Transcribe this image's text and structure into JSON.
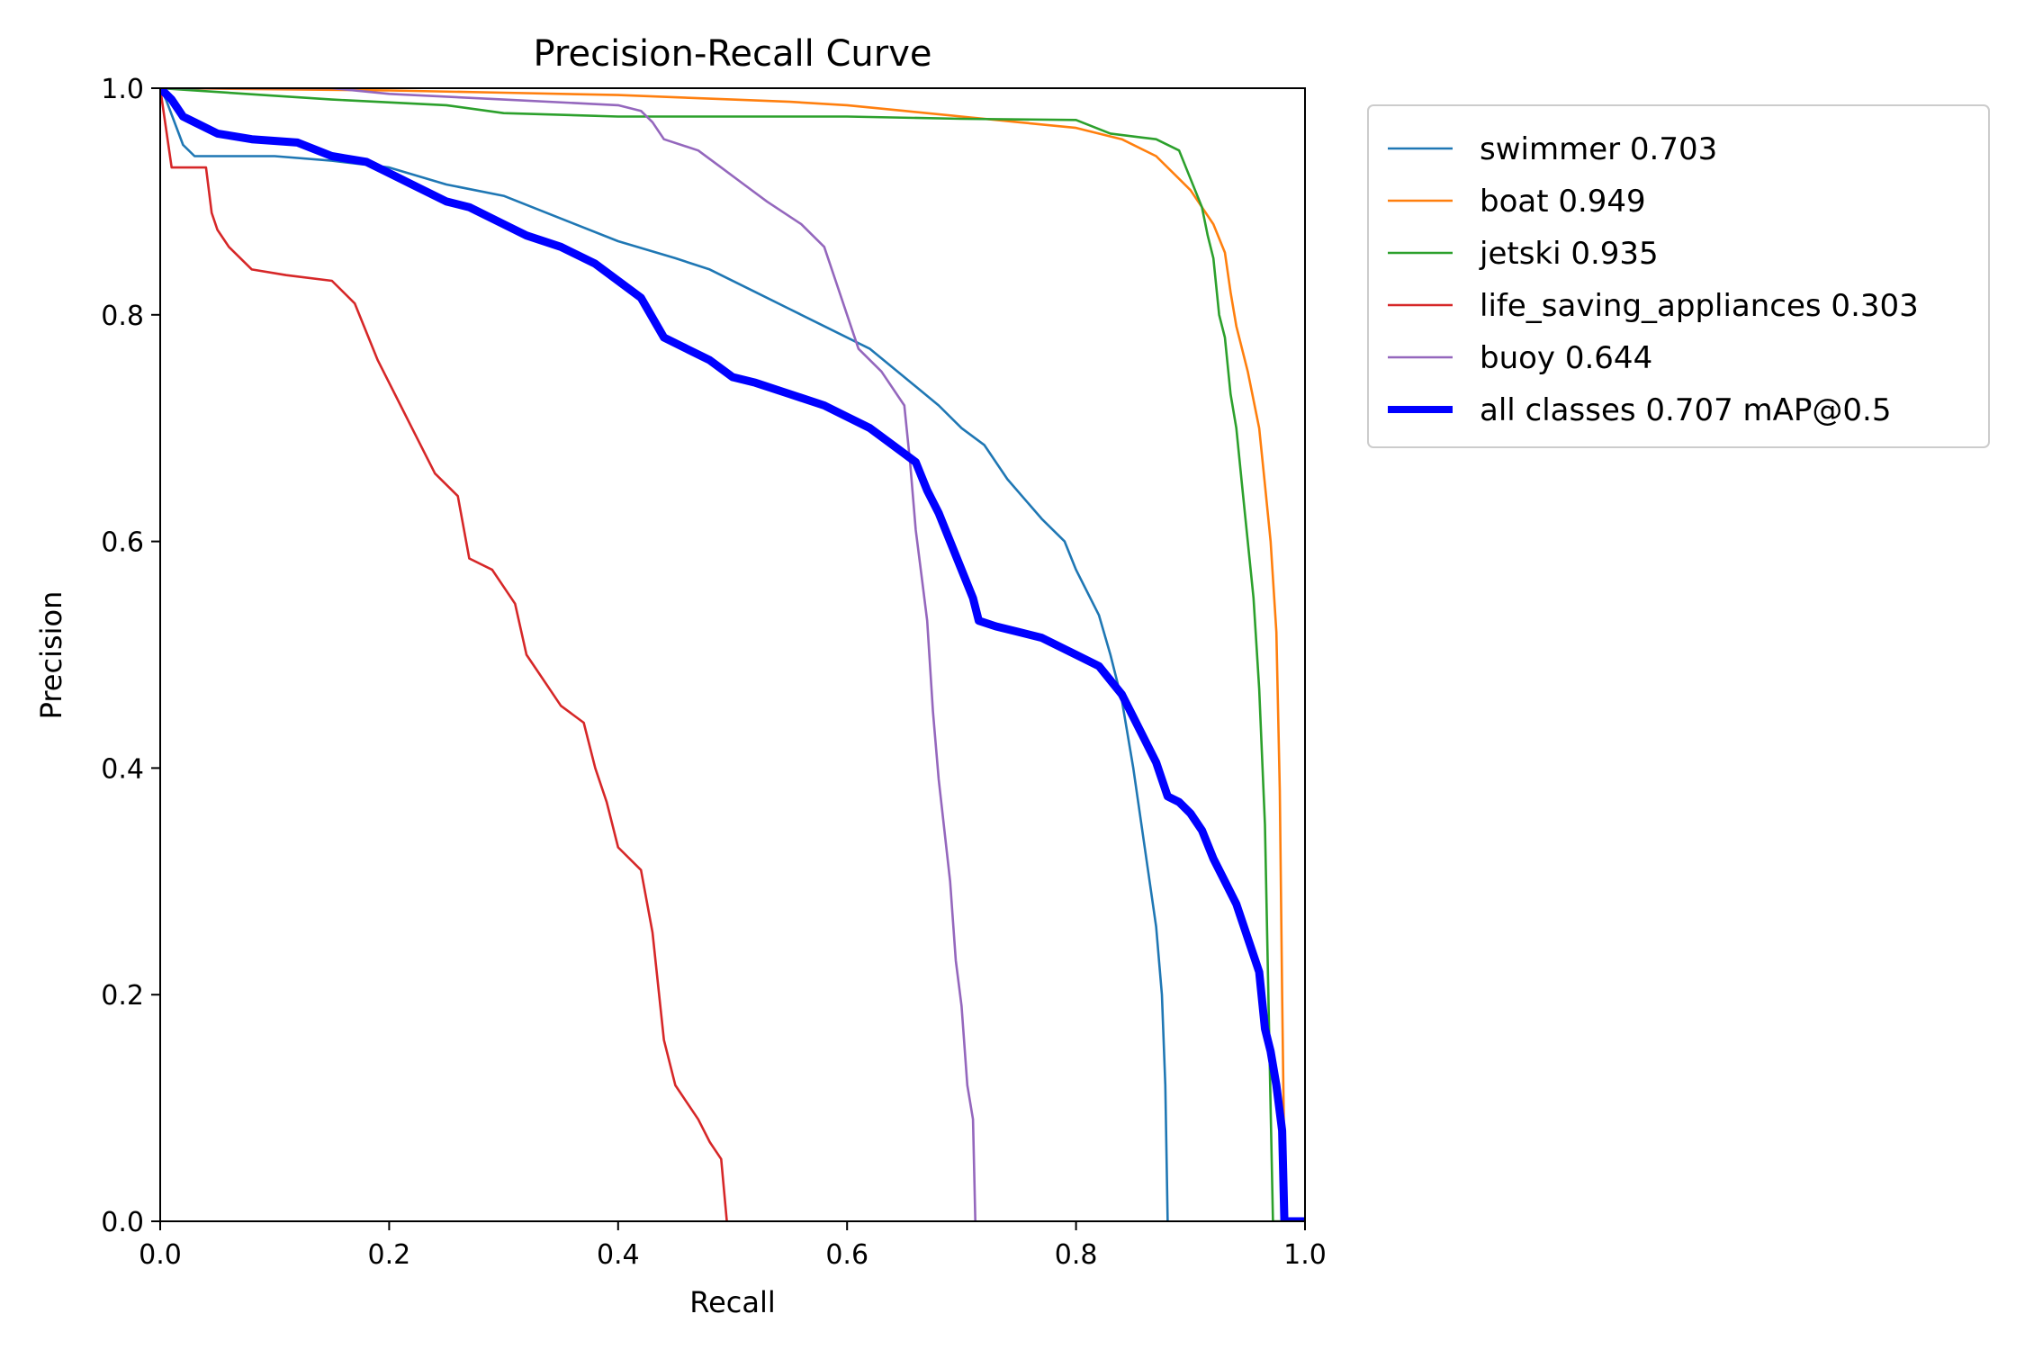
{
  "chart_data": {
    "type": "line",
    "title": "Precision-Recall Curve",
    "xlabel": "Recall",
    "ylabel": "Precision",
    "xlim": [
      0.0,
      1.0
    ],
    "ylim": [
      0.0,
      1.0
    ],
    "xticks": [
      "0.0",
      "0.2",
      "0.4",
      "0.6",
      "0.8",
      "1.0"
    ],
    "yticks": [
      "0.0",
      "0.2",
      "0.4",
      "0.6",
      "0.8",
      "1.0"
    ],
    "grid": false,
    "legend_position": "outside-top-right",
    "series": [
      {
        "name": "swimmer 0.703",
        "color": "#1f77b4",
        "emphasis": false,
        "points": [
          [
            0,
            1.0
          ],
          [
            0.005,
            0.99
          ],
          [
            0.02,
            0.95
          ],
          [
            0.03,
            0.94
          ],
          [
            0.1,
            0.94
          ],
          [
            0.15,
            0.936
          ],
          [
            0.2,
            0.93
          ],
          [
            0.25,
            0.915
          ],
          [
            0.3,
            0.905
          ],
          [
            0.35,
            0.885
          ],
          [
            0.4,
            0.865
          ],
          [
            0.45,
            0.85
          ],
          [
            0.48,
            0.84
          ],
          [
            0.52,
            0.82
          ],
          [
            0.55,
            0.805
          ],
          [
            0.58,
            0.79
          ],
          [
            0.62,
            0.77
          ],
          [
            0.65,
            0.745
          ],
          [
            0.68,
            0.72
          ],
          [
            0.7,
            0.7
          ],
          [
            0.72,
            0.685
          ],
          [
            0.74,
            0.655
          ],
          [
            0.77,
            0.62
          ],
          [
            0.79,
            0.6
          ],
          [
            0.8,
            0.575
          ],
          [
            0.82,
            0.535
          ],
          [
            0.83,
            0.5
          ],
          [
            0.84,
            0.46
          ],
          [
            0.85,
            0.4
          ],
          [
            0.86,
            0.33
          ],
          [
            0.87,
            0.26
          ],
          [
            0.875,
            0.2
          ],
          [
            0.878,
            0.12
          ],
          [
            0.88,
            0.0
          ]
        ]
      },
      {
        "name": "boat 0.949",
        "color": "#ff7f0e",
        "emphasis": false,
        "points": [
          [
            0,
            1.0
          ],
          [
            0.2,
            0.998
          ],
          [
            0.3,
            0.996
          ],
          [
            0.4,
            0.994
          ],
          [
            0.5,
            0.99
          ],
          [
            0.55,
            0.988
          ],
          [
            0.6,
            0.985
          ],
          [
            0.65,
            0.98
          ],
          [
            0.7,
            0.975
          ],
          [
            0.75,
            0.97
          ],
          [
            0.8,
            0.965
          ],
          [
            0.84,
            0.955
          ],
          [
            0.87,
            0.94
          ],
          [
            0.89,
            0.92
          ],
          [
            0.9,
            0.91
          ],
          [
            0.91,
            0.895
          ],
          [
            0.92,
            0.88
          ],
          [
            0.93,
            0.855
          ],
          [
            0.935,
            0.82
          ],
          [
            0.94,
            0.79
          ],
          [
            0.95,
            0.75
          ],
          [
            0.96,
            0.7
          ],
          [
            0.965,
            0.65
          ],
          [
            0.97,
            0.6
          ],
          [
            0.975,
            0.52
          ],
          [
            0.978,
            0.38
          ],
          [
            0.98,
            0.2
          ],
          [
            0.982,
            0.05
          ],
          [
            0.984,
            0.0
          ],
          [
            1.0,
            0.0
          ]
        ]
      },
      {
        "name": "jetski 0.935",
        "color": "#2ca02c",
        "emphasis": false,
        "points": [
          [
            0,
            1.0
          ],
          [
            0.15,
            0.99
          ],
          [
            0.25,
            0.985
          ],
          [
            0.3,
            0.978
          ],
          [
            0.4,
            0.975
          ],
          [
            0.5,
            0.975
          ],
          [
            0.6,
            0.975
          ],
          [
            0.7,
            0.973
          ],
          [
            0.8,
            0.972
          ],
          [
            0.83,
            0.96
          ],
          [
            0.87,
            0.955
          ],
          [
            0.89,
            0.945
          ],
          [
            0.9,
            0.92
          ],
          [
            0.91,
            0.895
          ],
          [
            0.915,
            0.87
          ],
          [
            0.92,
            0.85
          ],
          [
            0.925,
            0.8
          ],
          [
            0.93,
            0.78
          ],
          [
            0.935,
            0.73
          ],
          [
            0.94,
            0.7
          ],
          [
            0.945,
            0.65
          ],
          [
            0.95,
            0.6
          ],
          [
            0.955,
            0.55
          ],
          [
            0.96,
            0.47
          ],
          [
            0.965,
            0.35
          ],
          [
            0.968,
            0.2
          ],
          [
            0.97,
            0.1
          ],
          [
            0.972,
            0.0
          ],
          [
            1.0,
            0.0
          ]
        ]
      },
      {
        "name": "life_saving_appliances 0.303",
        "color": "#d62728",
        "emphasis": false,
        "points": [
          [
            0,
            1.0
          ],
          [
            0.01,
            0.93
          ],
          [
            0.04,
            0.93
          ],
          [
            0.045,
            0.89
          ],
          [
            0.05,
            0.875
          ],
          [
            0.06,
            0.86
          ],
          [
            0.08,
            0.84
          ],
          [
            0.11,
            0.835
          ],
          [
            0.15,
            0.83
          ],
          [
            0.17,
            0.81
          ],
          [
            0.19,
            0.76
          ],
          [
            0.21,
            0.72
          ],
          [
            0.22,
            0.7
          ],
          [
            0.24,
            0.66
          ],
          [
            0.26,
            0.64
          ],
          [
            0.27,
            0.585
          ],
          [
            0.29,
            0.575
          ],
          [
            0.31,
            0.545
          ],
          [
            0.32,
            0.5
          ],
          [
            0.34,
            0.47
          ],
          [
            0.35,
            0.455
          ],
          [
            0.37,
            0.44
          ],
          [
            0.38,
            0.4
          ],
          [
            0.39,
            0.37
          ],
          [
            0.4,
            0.33
          ],
          [
            0.42,
            0.31
          ],
          [
            0.43,
            0.255
          ],
          [
            0.44,
            0.16
          ],
          [
            0.45,
            0.12
          ],
          [
            0.47,
            0.09
          ],
          [
            0.48,
            0.07
          ],
          [
            0.49,
            0.055
          ],
          [
            0.495,
            0.0
          ]
        ]
      },
      {
        "name": "buoy 0.644",
        "color": "#9467bd",
        "emphasis": false,
        "points": [
          [
            0,
            1.0
          ],
          [
            0.15,
            1.0
          ],
          [
            0.2,
            0.995
          ],
          [
            0.3,
            0.99
          ],
          [
            0.4,
            0.985
          ],
          [
            0.42,
            0.98
          ],
          [
            0.43,
            0.97
          ],
          [
            0.44,
            0.955
          ],
          [
            0.47,
            0.945
          ],
          [
            0.49,
            0.93
          ],
          [
            0.51,
            0.915
          ],
          [
            0.53,
            0.9
          ],
          [
            0.56,
            0.88
          ],
          [
            0.58,
            0.86
          ],
          [
            0.59,
            0.83
          ],
          [
            0.6,
            0.8
          ],
          [
            0.61,
            0.77
          ],
          [
            0.63,
            0.75
          ],
          [
            0.65,
            0.72
          ],
          [
            0.655,
            0.67
          ],
          [
            0.66,
            0.61
          ],
          [
            0.665,
            0.57
          ],
          [
            0.67,
            0.53
          ],
          [
            0.675,
            0.45
          ],
          [
            0.68,
            0.39
          ],
          [
            0.69,
            0.3
          ],
          [
            0.695,
            0.23
          ],
          [
            0.7,
            0.19
          ],
          [
            0.705,
            0.12
          ],
          [
            0.71,
            0.09
          ],
          [
            0.712,
            0.0
          ]
        ]
      },
      {
        "name": "all classes 0.707 mAP@0.5",
        "color": "#0000ff",
        "emphasis": true,
        "points": [
          [
            0,
            1.0
          ],
          [
            0.01,
            0.99
          ],
          [
            0.02,
            0.975
          ],
          [
            0.03,
            0.97
          ],
          [
            0.05,
            0.96
          ],
          [
            0.08,
            0.955
          ],
          [
            0.12,
            0.952
          ],
          [
            0.15,
            0.94
          ],
          [
            0.18,
            0.935
          ],
          [
            0.2,
            0.925
          ],
          [
            0.22,
            0.915
          ],
          [
            0.25,
            0.9
          ],
          [
            0.27,
            0.895
          ],
          [
            0.3,
            0.88
          ],
          [
            0.32,
            0.87
          ],
          [
            0.35,
            0.86
          ],
          [
            0.38,
            0.845
          ],
          [
            0.4,
            0.83
          ],
          [
            0.42,
            0.815
          ],
          [
            0.44,
            0.78
          ],
          [
            0.46,
            0.77
          ],
          [
            0.48,
            0.76
          ],
          [
            0.5,
            0.745
          ],
          [
            0.52,
            0.74
          ],
          [
            0.55,
            0.73
          ],
          [
            0.58,
            0.72
          ],
          [
            0.6,
            0.71
          ],
          [
            0.62,
            0.7
          ],
          [
            0.64,
            0.685
          ],
          [
            0.66,
            0.67
          ],
          [
            0.67,
            0.645
          ],
          [
            0.68,
            0.625
          ],
          [
            0.69,
            0.6
          ],
          [
            0.7,
            0.575
          ],
          [
            0.71,
            0.55
          ],
          [
            0.715,
            0.53
          ],
          [
            0.73,
            0.525
          ],
          [
            0.75,
            0.52
          ],
          [
            0.77,
            0.515
          ],
          [
            0.8,
            0.5
          ],
          [
            0.82,
            0.49
          ],
          [
            0.84,
            0.465
          ],
          [
            0.85,
            0.445
          ],
          [
            0.86,
            0.425
          ],
          [
            0.87,
            0.405
          ],
          [
            0.88,
            0.375
          ],
          [
            0.89,
            0.37
          ],
          [
            0.9,
            0.36
          ],
          [
            0.91,
            0.345
          ],
          [
            0.92,
            0.32
          ],
          [
            0.93,
            0.3
          ],
          [
            0.94,
            0.28
          ],
          [
            0.95,
            0.25
          ],
          [
            0.96,
            0.22
          ],
          [
            0.965,
            0.17
          ],
          [
            0.97,
            0.15
          ],
          [
            0.975,
            0.12
          ],
          [
            0.98,
            0.08
          ],
          [
            0.982,
            0.0
          ],
          [
            1.0,
            0.0
          ]
        ]
      }
    ]
  }
}
